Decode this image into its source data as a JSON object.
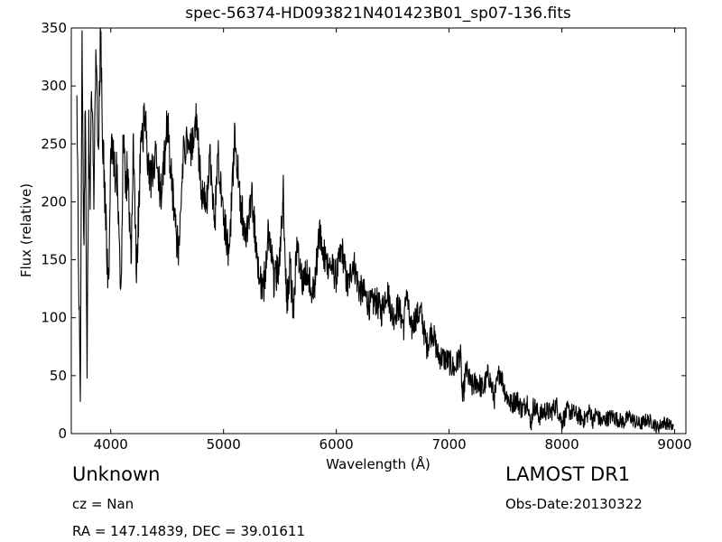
{
  "page": {
    "title": "spec-56374-HD093821N401423B01_sp07-136.fits",
    "object_class": "Unknown",
    "survey": "LAMOST DR1",
    "redshift_text": "cz = Nan",
    "obs_date_text": "Obs-Date:20130322",
    "coords_text": "RA = 147.14839, DEC = 39.01611"
  },
  "chart_data": {
    "type": "line",
    "title": "spec-56374-HD093821N401423B01_sp07-136.fits",
    "xlabel": "Wavelength (Å)",
    "ylabel": "Flux (relative)",
    "xlim": [
      3650,
      9100
    ],
    "ylim": [
      0,
      350
    ],
    "xticks": [
      4000,
      5000,
      6000,
      7000,
      8000,
      9000
    ],
    "yticks": [
      0,
      50,
      100,
      150,
      200,
      250,
      300,
      350
    ],
    "grid": false,
    "line_color": "#000000",
    "series": [
      {
        "x": [
          3700,
          3730,
          3745,
          3760,
          3775,
          3790,
          3805,
          3815,
          3830,
          3850,
          3870,
          3890,
          3910,
          3925,
          3950,
          3980,
          4000,
          4030,
          4060,
          4090,
          4110,
          4130,
          4150,
          4180,
          4200,
          4230,
          4260,
          4300,
          4350,
          4400,
          4450,
          4500,
          4550,
          4600,
          4650,
          4700,
          4760,
          4800,
          4850,
          4880,
          4920,
          4950,
          5000,
          5050,
          5100,
          5150,
          5200,
          5250,
          5300,
          5350,
          5400,
          5450,
          5500,
          5530,
          5560,
          5590,
          5620,
          5650,
          5700,
          5750,
          5800,
          5850,
          5900,
          5950,
          6000,
          6050,
          6100,
          6150,
          6200,
          6250,
          6300,
          6350,
          6400,
          6450,
          6500,
          6550,
          6600,
          6620,
          6660,
          6700,
          6750,
          6800,
          6850,
          6900,
          6950,
          7000,
          7050,
          7100,
          7120,
          7150,
          7200,
          7250,
          7300,
          7350,
          7400,
          7450,
          7500,
          7550,
          7600,
          7650,
          7700,
          7720,
          7750,
          7800,
          7850,
          7900,
          7950,
          8000,
          8050,
          8100,
          8150,
          8200,
          8250,
          8280,
          8300,
          8350,
          8400,
          8450,
          8500,
          8550,
          8600,
          8650,
          8700,
          8750,
          8800,
          8850,
          8900,
          8950,
          8990
        ],
        "y": [
          275,
          13,
          345,
          160,
          280,
          51,
          265,
          200,
          300,
          210,
          340,
          240,
          350,
          270,
          200,
          126,
          250,
          230,
          220,
          114,
          262,
          210,
          230,
          150,
          255,
          140,
          230,
          275,
          215,
          240,
          200,
          270,
          210,
          150,
          255,
          238,
          274,
          210,
          195,
          240,
          175,
          245,
          190,
          155,
          255,
          200,
          165,
          205,
          150,
          120,
          175,
          130,
          150,
          210,
          112,
          145,
          98,
          165,
          130,
          140,
          120,
          175,
          150,
          145,
          135,
          160,
          125,
          150,
          125,
          120,
          110,
          115,
          105,
          125,
          100,
          110,
          92,
          125,
          88,
          100,
          105,
          75,
          90,
          68,
          65,
          62,
          55,
          70,
          28,
          55,
          40,
          45,
          38,
          52,
          30,
          55,
          35,
          25,
          30,
          20,
          30,
          5,
          25,
          15,
          20,
          18,
          25,
          10,
          20,
          18,
          15,
          12,
          20,
          10,
          18,
          10,
          13,
          15,
          12,
          10,
          15,
          10,
          8,
          12,
          10,
          5,
          10,
          8,
          5
        ]
      }
    ],
    "noise": {
      "amplitude_blue": 40,
      "amplitude_red": 10,
      "seed": 136
    }
  }
}
